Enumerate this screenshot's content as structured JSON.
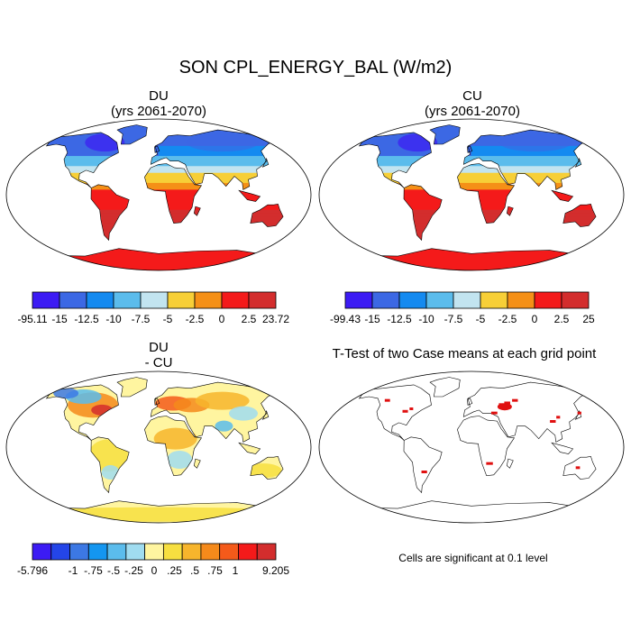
{
  "title": "SON CPL_ENERGY_BAL (W/m2)",
  "panels": [
    {
      "id": "du",
      "title": "DU",
      "subtitle": "(yrs 2061-2070)"
    },
    {
      "id": "cu",
      "title": "CU",
      "subtitle": "(yrs 2061-2070)"
    },
    {
      "id": "diff",
      "title": "DU",
      "subtitle": "- CU"
    },
    {
      "id": "ttest",
      "title": "T-Test of two Case means at each grid point",
      "subtitle": ""
    }
  ],
  "colorbars": [
    {
      "name": "du",
      "colors": [
        "#3c1bf4",
        "#3c68e4",
        "#148af0",
        "#5bbcec",
        "#c2e4f0",
        "#f7cf37",
        "#f59017",
        "#f41a1a",
        "#d32d2d"
      ],
      "labels": [
        "-95.11",
        "-15",
        "-12.5",
        "-10",
        "-7.5",
        "-5",
        "-2.5",
        "0",
        "2.5",
        "23.72"
      ]
    },
    {
      "name": "cu",
      "colors": [
        "#3c1bf4",
        "#3c68e4",
        "#148af0",
        "#5bbcec",
        "#c2e4f0",
        "#f7cf37",
        "#f59017",
        "#f41a1a",
        "#d32d2d"
      ],
      "labels": [
        "-99.43",
        "-15",
        "-12.5",
        "-10",
        "-7.5",
        "-5",
        "-2.5",
        "0",
        "2.5",
        "25"
      ]
    },
    {
      "name": "diff",
      "colors": [
        "#3c1bf4",
        "#2445e8",
        "#3c78e4",
        "#1496f0",
        "#5bbcec",
        "#a0dcf0",
        "#fff5a0",
        "#f7df40",
        "#f7b52c",
        "#f58a1b",
        "#f45a1a",
        "#f41a1a",
        "#d32d2d"
      ],
      "labels": [
        "-5.796",
        "",
        "-1",
        "-.75",
        "-.5",
        "-.25",
        "0",
        ".25",
        ".5",
        ".75",
        "1",
        "",
        "9.205"
      ]
    }
  ],
  "note": "Cells are significant at 0.1 level",
  "map_colors": {
    "ocean": "#ffffff",
    "coast": "#000000",
    "significant": "#e01010"
  }
}
